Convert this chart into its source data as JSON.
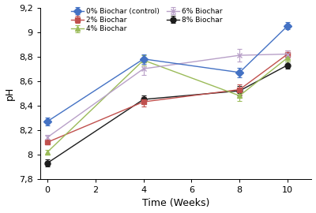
{
  "x": [
    0,
    4,
    8,
    10
  ],
  "series": {
    "0% Biochar (control)": {
      "y": [
        8.27,
        8.78,
        8.67,
        9.05
      ],
      "yerr": [
        0.03,
        0.04,
        0.04,
        0.03
      ],
      "color": "#4472C4",
      "marker": "D",
      "linestyle": "-"
    },
    "2% Biochar": {
      "y": [
        8.1,
        8.43,
        8.53,
        8.82
      ],
      "yerr": [
        0.02,
        0.04,
        0.04,
        0.03
      ],
      "color": "#C0504D",
      "marker": "s",
      "linestyle": "-"
    },
    "4% Biochar": {
      "y": [
        8.02,
        8.77,
        8.48,
        8.79
      ],
      "yerr": [
        0.02,
        0.04,
        0.04,
        0.03
      ],
      "color": "#9BBB59",
      "marker": "^",
      "linestyle": "-"
    },
    "6% Biochar": {
      "y": [
        8.14,
        8.7,
        8.81,
        8.82
      ],
      "yerr": [
        0.02,
        0.05,
        0.05,
        0.03
      ],
      "color": "#B8A0C8",
      "marker": "x",
      "linestyle": "-"
    },
    "8% Biochar": {
      "y": [
        7.93,
        8.45,
        8.52,
        8.73
      ],
      "yerr": [
        0.03,
        0.03,
        0.04,
        0.03
      ],
      "color": "#1C1C1C",
      "marker": "o",
      "linestyle": "-"
    }
  },
  "legend_order_col1": [
    "0% Biochar (control)",
    "4% Biochar",
    "8% Biochar"
  ],
  "legend_order_col2": [
    "2% Biochar",
    "6% Biochar"
  ],
  "legend_order_all": [
    "0% Biochar (control)",
    "2% Biochar",
    "4% Biochar",
    "6% Biochar",
    "8% Biochar"
  ],
  "xlabel": "Time (Weeks)",
  "ylabel": "pH",
  "xlim": [
    -0.3,
    11
  ],
  "ylim": [
    7.8,
    9.2
  ],
  "xticks": [
    0,
    2,
    4,
    6,
    8,
    10
  ],
  "yticks": [
    7.8,
    8.0,
    8.2,
    8.4,
    8.6,
    8.8,
    9.0,
    9.2
  ],
  "ytick_labels": [
    "7,8",
    "8",
    "8,2",
    "8,4",
    "8,6",
    "8,8",
    "9",
    "9,2"
  ],
  "background_color": "#FFFFFF",
  "markersize": 5,
  "linewidth": 1.0,
  "capsize": 2.5,
  "elinewidth": 0.8
}
